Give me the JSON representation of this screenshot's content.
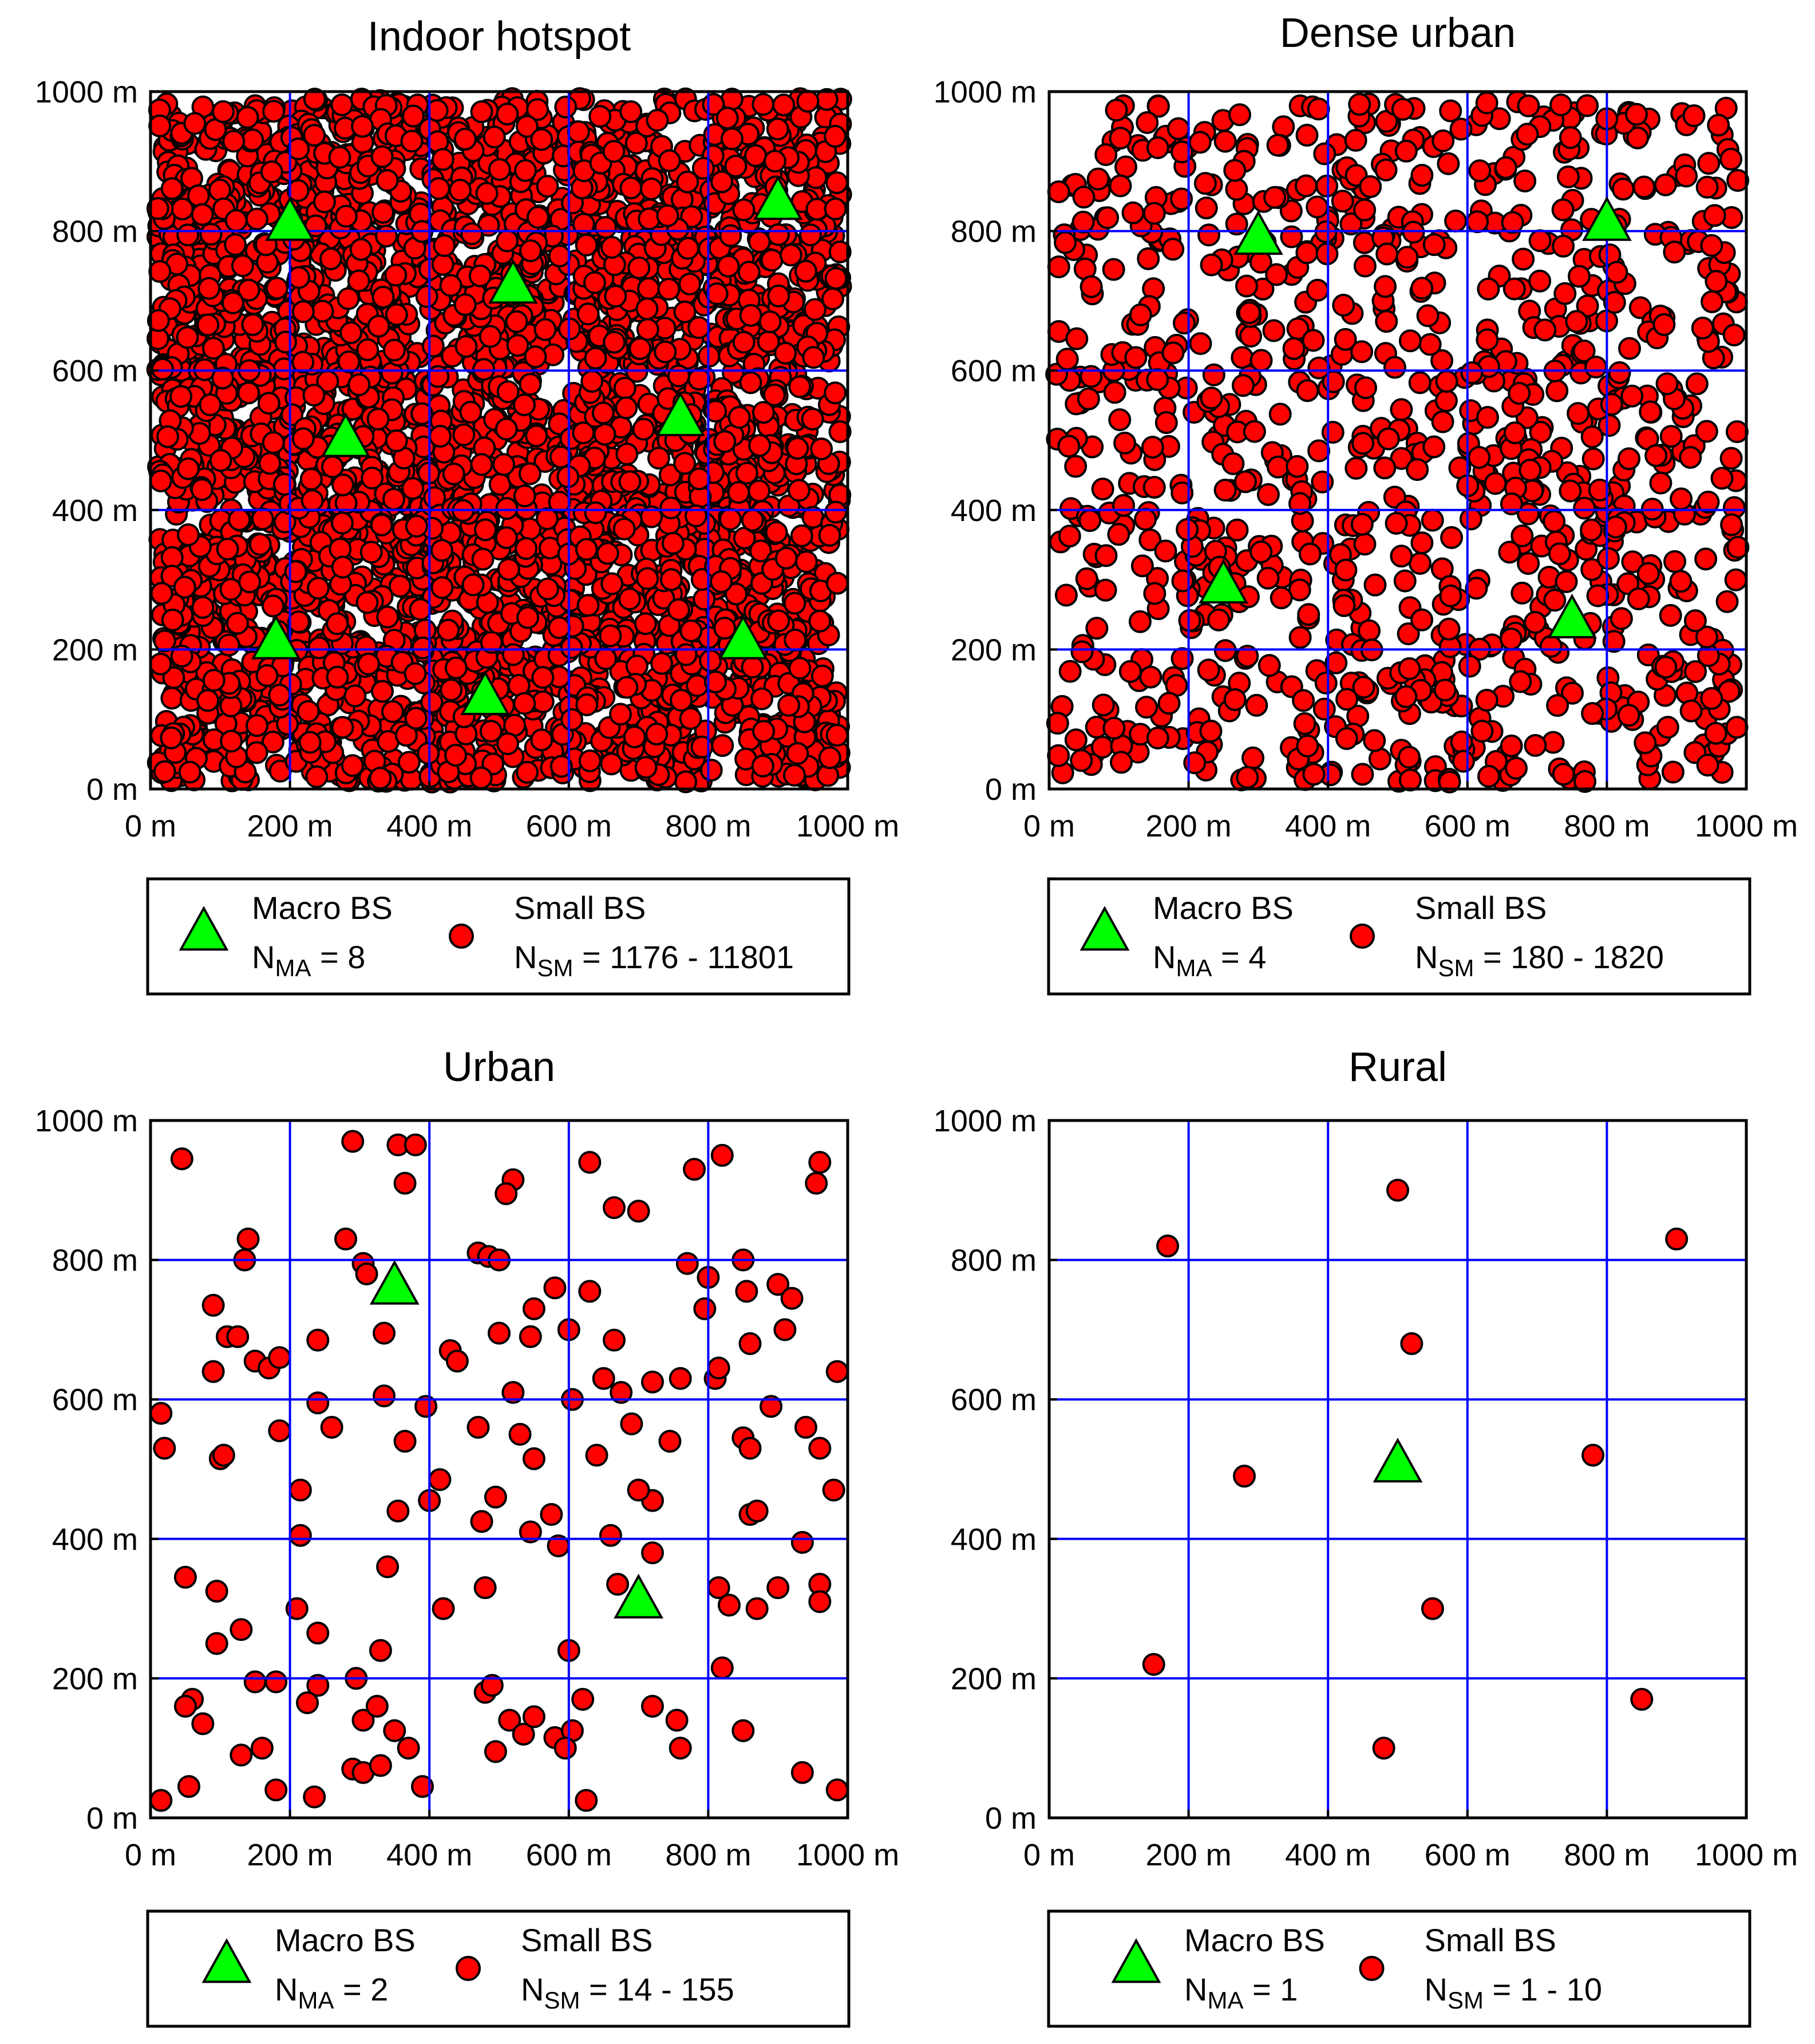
{
  "colors": {
    "macro_fill": "#00ff00",
    "small_fill": "#ff0000",
    "grid": "#0000ff",
    "marker_edge": "#000000",
    "background": "#ffffff"
  },
  "chart_data": [
    {
      "type": "scatter",
      "title": "Indoor hotspot",
      "xlim": [
        0,
        1000
      ],
      "ylim": [
        0,
        1000
      ],
      "ticks": [
        0,
        200,
        400,
        600,
        800,
        1000
      ],
      "tick_labels": [
        "0 m",
        "200 m",
        "400 m",
        "600 m",
        "800 m",
        "1000 m"
      ],
      "grid": true,
      "legend": {
        "position": "below",
        "macro_label": "Macro BS",
        "macro_n_prefix": "N",
        "macro_n_sub": "MA",
        "macro_n_value": " = 8",
        "small_label": "Small BS",
        "small_n_prefix": "N",
        "small_n_sub": "SM",
        "small_n_value": " = 1176 - 11801"
      },
      "macro_bs": [
        [
          200,
          810
        ],
        [
          520,
          720
        ],
        [
          900,
          840
        ],
        [
          280,
          500
        ],
        [
          760,
          530
        ],
        [
          180,
          210
        ],
        [
          850,
          210
        ],
        [
          480,
          130
        ]
      ],
      "small_bs_count_shown": 3500,
      "small_bs": []
    },
    {
      "type": "scatter",
      "title": "Dense urban",
      "xlim": [
        0,
        1000
      ],
      "ylim": [
        0,
        1000
      ],
      "ticks": [
        0,
        200,
        400,
        600,
        800,
        1000
      ],
      "tick_labels": [
        "0 m",
        "200 m",
        "400 m",
        "600 m",
        "800 m",
        "1000 m"
      ],
      "grid": true,
      "legend": {
        "position": "below",
        "macro_label": "Macro BS",
        "macro_n_prefix": "N",
        "macro_n_sub": "MA",
        "macro_n_value": " = 4",
        "small_label": "Small BS",
        "small_n_prefix": "N",
        "small_n_sub": "SM",
        "small_n_value": " = 180 - 1820"
      },
      "macro_bs": [
        [
          300,
          790
        ],
        [
          800,
          810
        ],
        [
          250,
          290
        ],
        [
          750,
          240
        ]
      ],
      "small_bs_count_shown": 1000,
      "small_bs": []
    },
    {
      "type": "scatter",
      "title": "Urban",
      "xlim": [
        0,
        1000
      ],
      "ylim": [
        0,
        1000
      ],
      "ticks": [
        0,
        200,
        400,
        600,
        800,
        1000
      ],
      "tick_labels": [
        "0 m",
        "200 m",
        "400 m",
        "600 m",
        "800 m",
        "1000 m"
      ],
      "grid": true,
      "legend": {
        "position": "below",
        "macro_label": "Macro BS",
        "macro_n_prefix": "N",
        "macro_n_sub": "MA",
        "macro_n_value": " = 2",
        "small_label": "Small BS",
        "small_n_prefix": "N",
        "small_n_sub": "SM",
        "small_n_value": " = 14 - 155"
      },
      "macro_bs": [
        [
          350,
          760
        ],
        [
          700,
          310
        ]
      ],
      "small_bs_count_shown": 155,
      "small_bs": [
        [
          45,
          945
        ],
        [
          290,
          970
        ],
        [
          355,
          965
        ],
        [
          380,
          965
        ],
        [
          365,
          910
        ],
        [
          520,
          915
        ],
        [
          510,
          895
        ],
        [
          630,
          940
        ],
        [
          665,
          875
        ],
        [
          700,
          870
        ],
        [
          780,
          930
        ],
        [
          820,
          950
        ],
        [
          960,
          940
        ],
        [
          955,
          910
        ],
        [
          140,
          830
        ],
        [
          135,
          800
        ],
        [
          90,
          735
        ],
        [
          280,
          830
        ],
        [
          305,
          795
        ],
        [
          310,
          780
        ],
        [
          470,
          810
        ],
        [
          485,
          805
        ],
        [
          500,
          800
        ],
        [
          430,
          670
        ],
        [
          440,
          655
        ],
        [
          500,
          695
        ],
        [
          550,
          730
        ],
        [
          545,
          690
        ],
        [
          580,
          760
        ],
        [
          600,
          700
        ],
        [
          630,
          755
        ],
        [
          665,
          685
        ],
        [
          675,
          610
        ],
        [
          650,
          630
        ],
        [
          690,
          565
        ],
        [
          720,
          625
        ],
        [
          770,
          795
        ],
        [
          800,
          775
        ],
        [
          795,
          730
        ],
        [
          760,
          630
        ],
        [
          810,
          630
        ],
        [
          815,
          645
        ],
        [
          850,
          800
        ],
        [
          855,
          755
        ],
        [
          900,
          765
        ],
        [
          910,
          700
        ],
        [
          920,
          745
        ],
        [
          985,
          640
        ],
        [
          110,
          690
        ],
        [
          125,
          690
        ],
        [
          150,
          655
        ],
        [
          170,
          645
        ],
        [
          185,
          660
        ],
        [
          90,
          640
        ],
        [
          240,
          685
        ],
        [
          335,
          695
        ],
        [
          15,
          580
        ],
        [
          20,
          530
        ],
        [
          100,
          515
        ],
        [
          105,
          520
        ],
        [
          185,
          555
        ],
        [
          240,
          595
        ],
        [
          335,
          605
        ],
        [
          365,
          540
        ],
        [
          400,
          455
        ],
        [
          415,
          485
        ],
        [
          530,
          550
        ],
        [
          550,
          515
        ],
        [
          575,
          435
        ],
        [
          585,
          390
        ],
        [
          720,
          455
        ],
        [
          850,
          545
        ],
        [
          860,
          530
        ],
        [
          860,
          435
        ],
        [
          870,
          440
        ],
        [
          890,
          590
        ],
        [
          960,
          530
        ],
        [
          215,
          470
        ],
        [
          215,
          405
        ],
        [
          475,
          425
        ],
        [
          340,
          360
        ],
        [
          720,
          380
        ],
        [
          50,
          345
        ],
        [
          95,
          325
        ],
        [
          130,
          270
        ],
        [
          95,
          250
        ],
        [
          210,
          300
        ],
        [
          240,
          265
        ],
        [
          240,
          190
        ],
        [
          150,
          195
        ],
        [
          180,
          195
        ],
        [
          225,
          165
        ],
        [
          480,
          330
        ],
        [
          480,
          180
        ],
        [
          490,
          190
        ],
        [
          670,
          335
        ],
        [
          600,
          240
        ],
        [
          815,
          330
        ],
        [
          830,
          305
        ],
        [
          870,
          300
        ],
        [
          900,
          330
        ],
        [
          935,
          395
        ],
        [
          960,
          335
        ],
        [
          960,
          310
        ],
        [
          820,
          215
        ],
        [
          60,
          170
        ],
        [
          50,
          160
        ],
        [
          75,
          135
        ],
        [
          130,
          90
        ],
        [
          55,
          45
        ],
        [
          15,
          25
        ],
        [
          180,
          40
        ],
        [
          235,
          30
        ],
        [
          305,
          140
        ],
        [
          325,
          160
        ],
        [
          350,
          125
        ],
        [
          370,
          100
        ],
        [
          290,
          70
        ],
        [
          305,
          65
        ],
        [
          330,
          75
        ],
        [
          390,
          45
        ],
        [
          495,
          95
        ],
        [
          515,
          140
        ],
        [
          535,
          120
        ],
        [
          550,
          145
        ],
        [
          580,
          115
        ],
        [
          605,
          125
        ],
        [
          595,
          100
        ],
        [
          625,
          25
        ],
        [
          720,
          160
        ],
        [
          755,
          140
        ],
        [
          760,
          100
        ],
        [
          850,
          125
        ],
        [
          935,
          65
        ],
        [
          985,
          40
        ],
        [
          295,
          200
        ],
        [
          495,
          460
        ],
        [
          640,
          520
        ],
        [
          700,
          470
        ],
        [
          545,
          410
        ],
        [
          160,
          100
        ],
        [
          260,
          560
        ],
        [
          355,
          440
        ],
        [
          395,
          590
        ],
        [
          470,
          560
        ],
        [
          520,
          610
        ],
        [
          605,
          600
        ],
        [
          660,
          405
        ],
        [
          745,
          540
        ],
        [
          860,
          680
        ],
        [
          940,
          560
        ],
        [
          980,
          470
        ],
        [
          330,
          240
        ],
        [
          420,
          300
        ],
        [
          620,
          170
        ]
      ]
    },
    {
      "type": "scatter",
      "title": "Rural",
      "xlim": [
        0,
        1000
      ],
      "ylim": [
        0,
        1000
      ],
      "ticks": [
        0,
        200,
        400,
        600,
        800,
        1000
      ],
      "tick_labels": [
        "0 m",
        "200 m",
        "400 m",
        "600 m",
        "800 m",
        "1000 m"
      ],
      "grid": true,
      "legend": {
        "position": "below",
        "macro_label": "Macro BS",
        "macro_n_prefix": "N",
        "macro_n_sub": "MA",
        "macro_n_value": " = 1",
        "small_label": "Small BS",
        "small_n_prefix": "N",
        "small_n_sub": "SM",
        "small_n_value": " = 1 - 10"
      },
      "macro_bs": [
        [
          500,
          505
        ]
      ],
      "small_bs_count_shown": 10,
      "small_bs": [
        [
          500,
          900
        ],
        [
          170,
          820
        ],
        [
          900,
          830
        ],
        [
          520,
          680
        ],
        [
          280,
          490
        ],
        [
          780,
          520
        ],
        [
          550,
          300
        ],
        [
          150,
          220
        ],
        [
          850,
          170
        ],
        [
          480,
          100
        ]
      ]
    }
  ]
}
